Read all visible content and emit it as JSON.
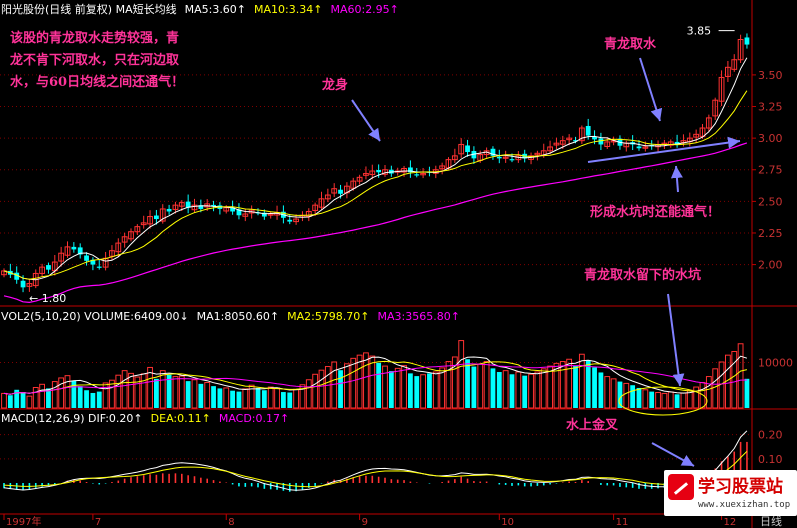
{
  "colors": {
    "up": "#ff3232",
    "down": "#00ffff",
    "ma5": "#ffffff",
    "ma10": "#ffff00",
    "ma60": "#ff00ff",
    "annotation": "#ff3399",
    "arrow": "#8080ff",
    "grid": "#800000",
    "axis": "#c00000"
  },
  "header": {
    "main": [
      {
        "text": "阳光股份(日线 前复权) MA短长均线",
        "color": "#ffffff"
      },
      {
        "text": "MA5:3.60↑",
        "color": "#ffffff"
      },
      {
        "text": "MA10:3.34↑",
        "color": "#ffff00"
      },
      {
        "text": "MA60:2.95↑",
        "color": "#ff00ff"
      }
    ],
    "vol": [
      {
        "text": "VOL2(5,10,20) VOLUME:6409.00↓",
        "color": "#ffffff"
      },
      {
        "text": "MA1:8050.60↑",
        "color": "#ffffff"
      },
      {
        "text": "MA2:5798.70↑",
        "color": "#ffff00"
      },
      {
        "text": "MA3:3565.80↑",
        "color": "#ff00ff"
      }
    ],
    "macd": [
      {
        "text": "MACD(12,26,9) DIF:0.20↑",
        "color": "#ffffff"
      },
      {
        "text": "DEA:0.11↑",
        "color": "#ffff00"
      },
      {
        "text": "MACD:0.17↑",
        "color": "#ff00ff"
      }
    ]
  },
  "annotations": [
    {
      "text": "该股的青龙取水走势较强，青"
    },
    {
      "text": "龙不肯下河取水，只在河边取"
    },
    {
      "text": "水，与60日均线之间还通气！"
    },
    {
      "text": "龙身"
    },
    {
      "text": "青龙取水"
    },
    {
      "text": "形成水坑时还能通气！"
    },
    {
      "text": "青龙取水留下的水坑"
    },
    {
      "text": "水上金叉"
    }
  ],
  "labels": {
    "high": "3.85",
    "low": "← 1.80"
  },
  "watermark": {
    "site": "学习股票站",
    "url": "www.xuexizhan.top"
  },
  "chart_data": {
    "type": "candlestick",
    "price_axis": {
      "ticks": [
        "3.50",
        "3.25",
        "3.00",
        "2.75",
        "2.50",
        "2.25",
        "2.00"
      ],
      "range": [
        1.72,
        3.95
      ]
    },
    "volume_axis": {
      "ticks": [
        "10000"
      ],
      "range": [
        0,
        18000
      ]
    },
    "macd_axis": {
      "ticks": [
        "0.20",
        "0.10"
      ],
      "range": [
        -0.12,
        0.24
      ]
    },
    "x_labels": [
      {
        "text": "1997年",
        "index": 0
      },
      {
        "text": "7",
        "index": 14
      },
      {
        "text": "8",
        "index": 35
      },
      {
        "text": "9",
        "index": 56
      },
      {
        "text": "10",
        "index": 78
      },
      {
        "text": "11",
        "index": 96
      },
      {
        "text": "12",
        "index": 113
      }
    ],
    "period_label": "日线",
    "close": [
      1.95,
      1.92,
      1.88,
      1.82,
      1.85,
      1.93,
      1.98,
      1.96,
      2.02,
      2.09,
      2.14,
      2.12,
      2.08,
      2.03,
      2.0,
      1.98,
      2.05,
      2.11,
      2.17,
      2.22,
      2.26,
      2.3,
      2.33,
      2.38,
      2.36,
      2.44,
      2.42,
      2.47,
      2.49,
      2.45,
      2.47,
      2.44,
      2.48,
      2.46,
      2.44,
      2.45,
      2.42,
      2.39,
      2.4,
      2.43,
      2.41,
      2.38,
      2.4,
      2.41,
      2.37,
      2.34,
      2.36,
      2.39,
      2.42,
      2.47,
      2.52,
      2.55,
      2.6,
      2.56,
      2.62,
      2.66,
      2.69,
      2.72,
      2.74,
      2.73,
      2.75,
      2.72,
      2.74,
      2.76,
      2.73,
      2.71,
      2.72,
      2.73,
      2.75,
      2.78,
      2.83,
      2.86,
      2.95,
      2.89,
      2.84,
      2.87,
      2.9,
      2.86,
      2.84,
      2.85,
      2.83,
      2.86,
      2.84,
      2.86,
      2.88,
      2.9,
      2.93,
      2.96,
      2.98,
      3.0,
      2.98,
      3.08,
      3.02,
      2.99,
      2.95,
      2.97,
      2.98,
      2.94,
      2.96,
      2.95,
      2.92,
      2.93,
      2.94,
      2.95,
      2.96,
      2.97,
      2.95,
      2.98,
      3.0,
      3.03,
      3.08,
      3.16,
      3.3,
      3.48,
      3.56,
      3.62,
      3.78,
      3.74
    ],
    "volume": [
      3200,
      2800,
      4000,
      3500,
      2600,
      4500,
      5200,
      4300,
      5800,
      6600,
      7100,
      6000,
      4800,
      3900,
      3300,
      3600,
      5500,
      6100,
      7200,
      8200,
      7600,
      6800,
      7500,
      8900,
      6400,
      8200,
      7300,
      6900,
      7000,
      5900,
      6200,
      5300,
      5600,
      4800,
      4300,
      4400,
      3800,
      3600,
      4200,
      5000,
      4400,
      3900,
      4600,
      4400,
      3500,
      3400,
      4100,
      5100,
      6200,
      7400,
      8300,
      9100,
      10100,
      8300,
      9700,
      10900,
      11600,
      12100,
      11400,
      9900,
      9200,
      8100,
      8700,
      9300,
      7600,
      7000,
      7300,
      7600,
      7900,
      8800,
      10200,
      11200,
      14800,
      10700,
      9100,
      9600,
      10200,
      8700,
      7900,
      8200,
      7400,
      7900,
      7100,
      7400,
      7900,
      8600,
      9200,
      9800,
      10200,
      10700,
      9300,
      11800,
      10400,
      8900,
      7800,
      6900,
      6400,
      5800,
      5400,
      5000,
      4400,
      4000,
      3600,
      3400,
      3200,
      3500,
      3000,
      3300,
      3900,
      4600,
      5600,
      6900,
      8600,
      10100,
      11600,
      12400,
      14100,
      6409
    ],
    "macd_hist": [
      -0.022,
      -0.025,
      -0.028,
      -0.03,
      -0.026,
      -0.02,
      -0.015,
      -0.012,
      -0.006,
      0.0,
      0.01,
      0.013,
      0.01,
      0.004,
      -0.002,
      -0.006,
      -0.002,
      0.004,
      0.01,
      0.018,
      0.024,
      0.028,
      0.032,
      0.036,
      0.034,
      0.04,
      0.038,
      0.04,
      0.038,
      0.032,
      0.028,
      0.022,
      0.018,
      0.012,
      0.006,
      0.002,
      -0.006,
      -0.014,
      -0.016,
      -0.014,
      -0.018,
      -0.024,
      -0.026,
      -0.028,
      -0.032,
      -0.036,
      -0.034,
      -0.028,
      -0.02,
      -0.012,
      -0.002,
      0.006,
      0.014,
      0.012,
      0.018,
      0.024,
      0.028,
      0.03,
      0.03,
      0.026,
      0.022,
      0.016,
      0.014,
      0.012,
      0.006,
      0.002,
      0.0,
      -0.002,
      0.0,
      0.004,
      0.01,
      0.016,
      0.026,
      0.018,
      0.008,
      0.006,
      0.006,
      0.0,
      -0.006,
      -0.008,
      -0.012,
      -0.01,
      -0.014,
      -0.014,
      -0.012,
      -0.01,
      -0.006,
      -0.002,
      0.002,
      0.006,
      0.004,
      0.012,
      0.008,
      0.0,
      -0.008,
      -0.01,
      -0.01,
      -0.016,
      -0.018,
      -0.02,
      -0.024,
      -0.024,
      -0.024,
      -0.022,
      -0.02,
      -0.018,
      -0.02,
      -0.016,
      -0.01,
      -0.002,
      0.01,
      0.03,
      0.06,
      0.09,
      0.11,
      0.13,
      0.17,
      0.17
    ]
  }
}
